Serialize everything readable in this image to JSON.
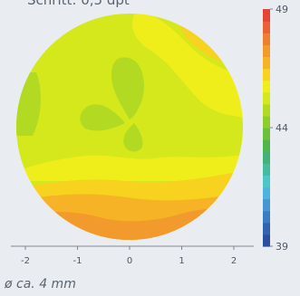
{
  "chart_data": {
    "type": "heatmap",
    "title": "Schritt: 0,5 dpt",
    "footnote": "ø ca. 4 mm",
    "x_ticks": [
      -2,
      -1,
      0,
      1,
      2
    ],
    "x_range": [
      -2.5,
      2.5
    ],
    "colorbar": {
      "min": 39,
      "max": 49,
      "ticks": [
        49,
        44,
        39
      ],
      "step": 0.5,
      "colors": [
        {
          "value": 39.0,
          "color": "#2b4fa0"
        },
        {
          "value": 39.5,
          "color": "#3163b0"
        },
        {
          "value": 40.0,
          "color": "#3a7cc3"
        },
        {
          "value": 40.5,
          "color": "#4596d2"
        },
        {
          "value": 41.0,
          "color": "#4fb3df"
        },
        {
          "value": 41.5,
          "color": "#4cc6c7"
        },
        {
          "value": 42.0,
          "color": "#45bba0"
        },
        {
          "value": 42.5,
          "color": "#42b27a"
        },
        {
          "value": 43.0,
          "color": "#4fb64e"
        },
        {
          "value": 43.5,
          "color": "#6cc03c"
        },
        {
          "value": 44.0,
          "color": "#8fcd2c"
        },
        {
          "value": 44.5,
          "color": "#b2da22"
        },
        {
          "value": 45.0,
          "color": "#d4e81c"
        },
        {
          "value": 45.5,
          "color": "#f0ee1a"
        },
        {
          "value": 46.0,
          "color": "#f7d21e"
        },
        {
          "value": 46.5,
          "color": "#f6b326"
        },
        {
          "value": 47.0,
          "color": "#f39a2c"
        },
        {
          "value": 47.5,
          "color": "#ef7f30"
        },
        {
          "value": 48.0,
          "color": "#ea6234"
        },
        {
          "value": 48.5,
          "color": "#e44536"
        }
      ]
    },
    "zones": [
      {
        "name": "base",
        "value": 45.0
      },
      {
        "name": "upper-right-band",
        "value": 45.5
      },
      {
        "name": "upper-right-spot",
        "value": 46.0
      },
      {
        "name": "center-band",
        "value": 45.5
      },
      {
        "name": "center-lobe-up",
        "value": 44.5
      },
      {
        "name": "center-lobe-left",
        "value": 44.5
      },
      {
        "name": "center-lobe-right",
        "value": 44.5
      },
      {
        "name": "left-edge",
        "value": 44.5
      },
      {
        "name": "lower-band-1",
        "value": 46.0
      },
      {
        "name": "lower-band-2",
        "value": 46.5
      },
      {
        "name": "lower-band-3",
        "value": 47.0
      }
    ]
  }
}
